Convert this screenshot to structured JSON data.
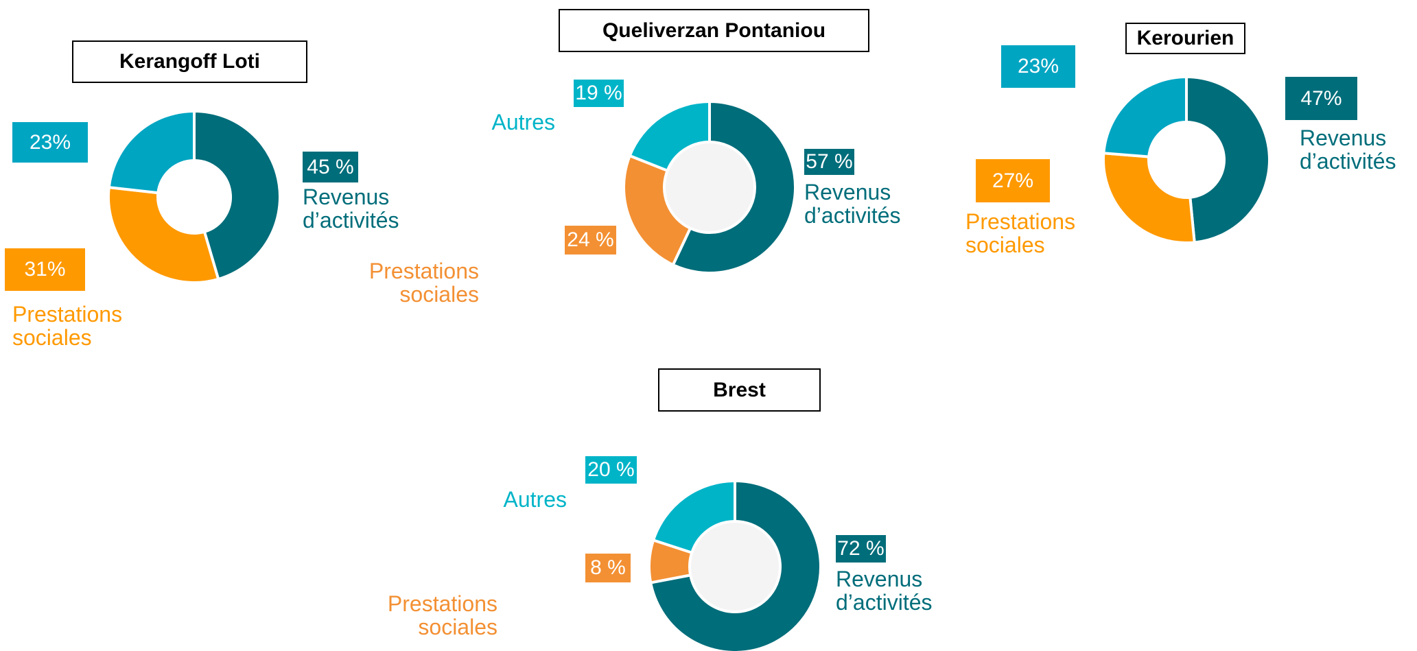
{
  "chart_data": [
    {
      "type": "donut",
      "title": "Kerangoff Loti",
      "categories": [
        "Revenus d’activités",
        "Prestations sociales",
        null
      ],
      "values": [
        45,
        31,
        23
      ],
      "value_labels": [
        "45 %",
        "31%",
        "23%"
      ],
      "colors": [
        "#006d7a",
        "#ff9900",
        "#00a5c2"
      ],
      "hole_color": "#ffffff"
    },
    {
      "type": "donut",
      "title": "Queliverzan Pontaniou",
      "categories": [
        "Revenus d’activités",
        "Prestations sociales",
        "Autres"
      ],
      "values": [
        57,
        24,
        19
      ],
      "value_labels": [
        "57 %",
        "24 %",
        "19 %"
      ],
      "colors": [
        "#006d7a",
        "#f39033",
        "#00b4c8"
      ],
      "hole_color": "#f4f4f4"
    },
    {
      "type": "donut",
      "title": "Kerourien",
      "categories": [
        "Revenus d’activités",
        "Prestations sociales",
        null
      ],
      "values": [
        47,
        27,
        23
      ],
      "value_labels": [
        "47%",
        "27%",
        "23%"
      ],
      "colors": [
        "#006d7a",
        "#ff9900",
        "#00a5c2"
      ],
      "hole_color": "#ffffff"
    },
    {
      "type": "donut",
      "title": "Brest",
      "categories": [
        "Revenus d’activités",
        "Prestations sociales",
        "Autres"
      ],
      "values": [
        72,
        8,
        20
      ],
      "value_labels": [
        "72 %",
        "8 %",
        "20 %"
      ],
      "colors": [
        "#006d7a",
        "#f39033",
        "#00b4c8"
      ],
      "hole_color": "#f4f4f4"
    }
  ]
}
